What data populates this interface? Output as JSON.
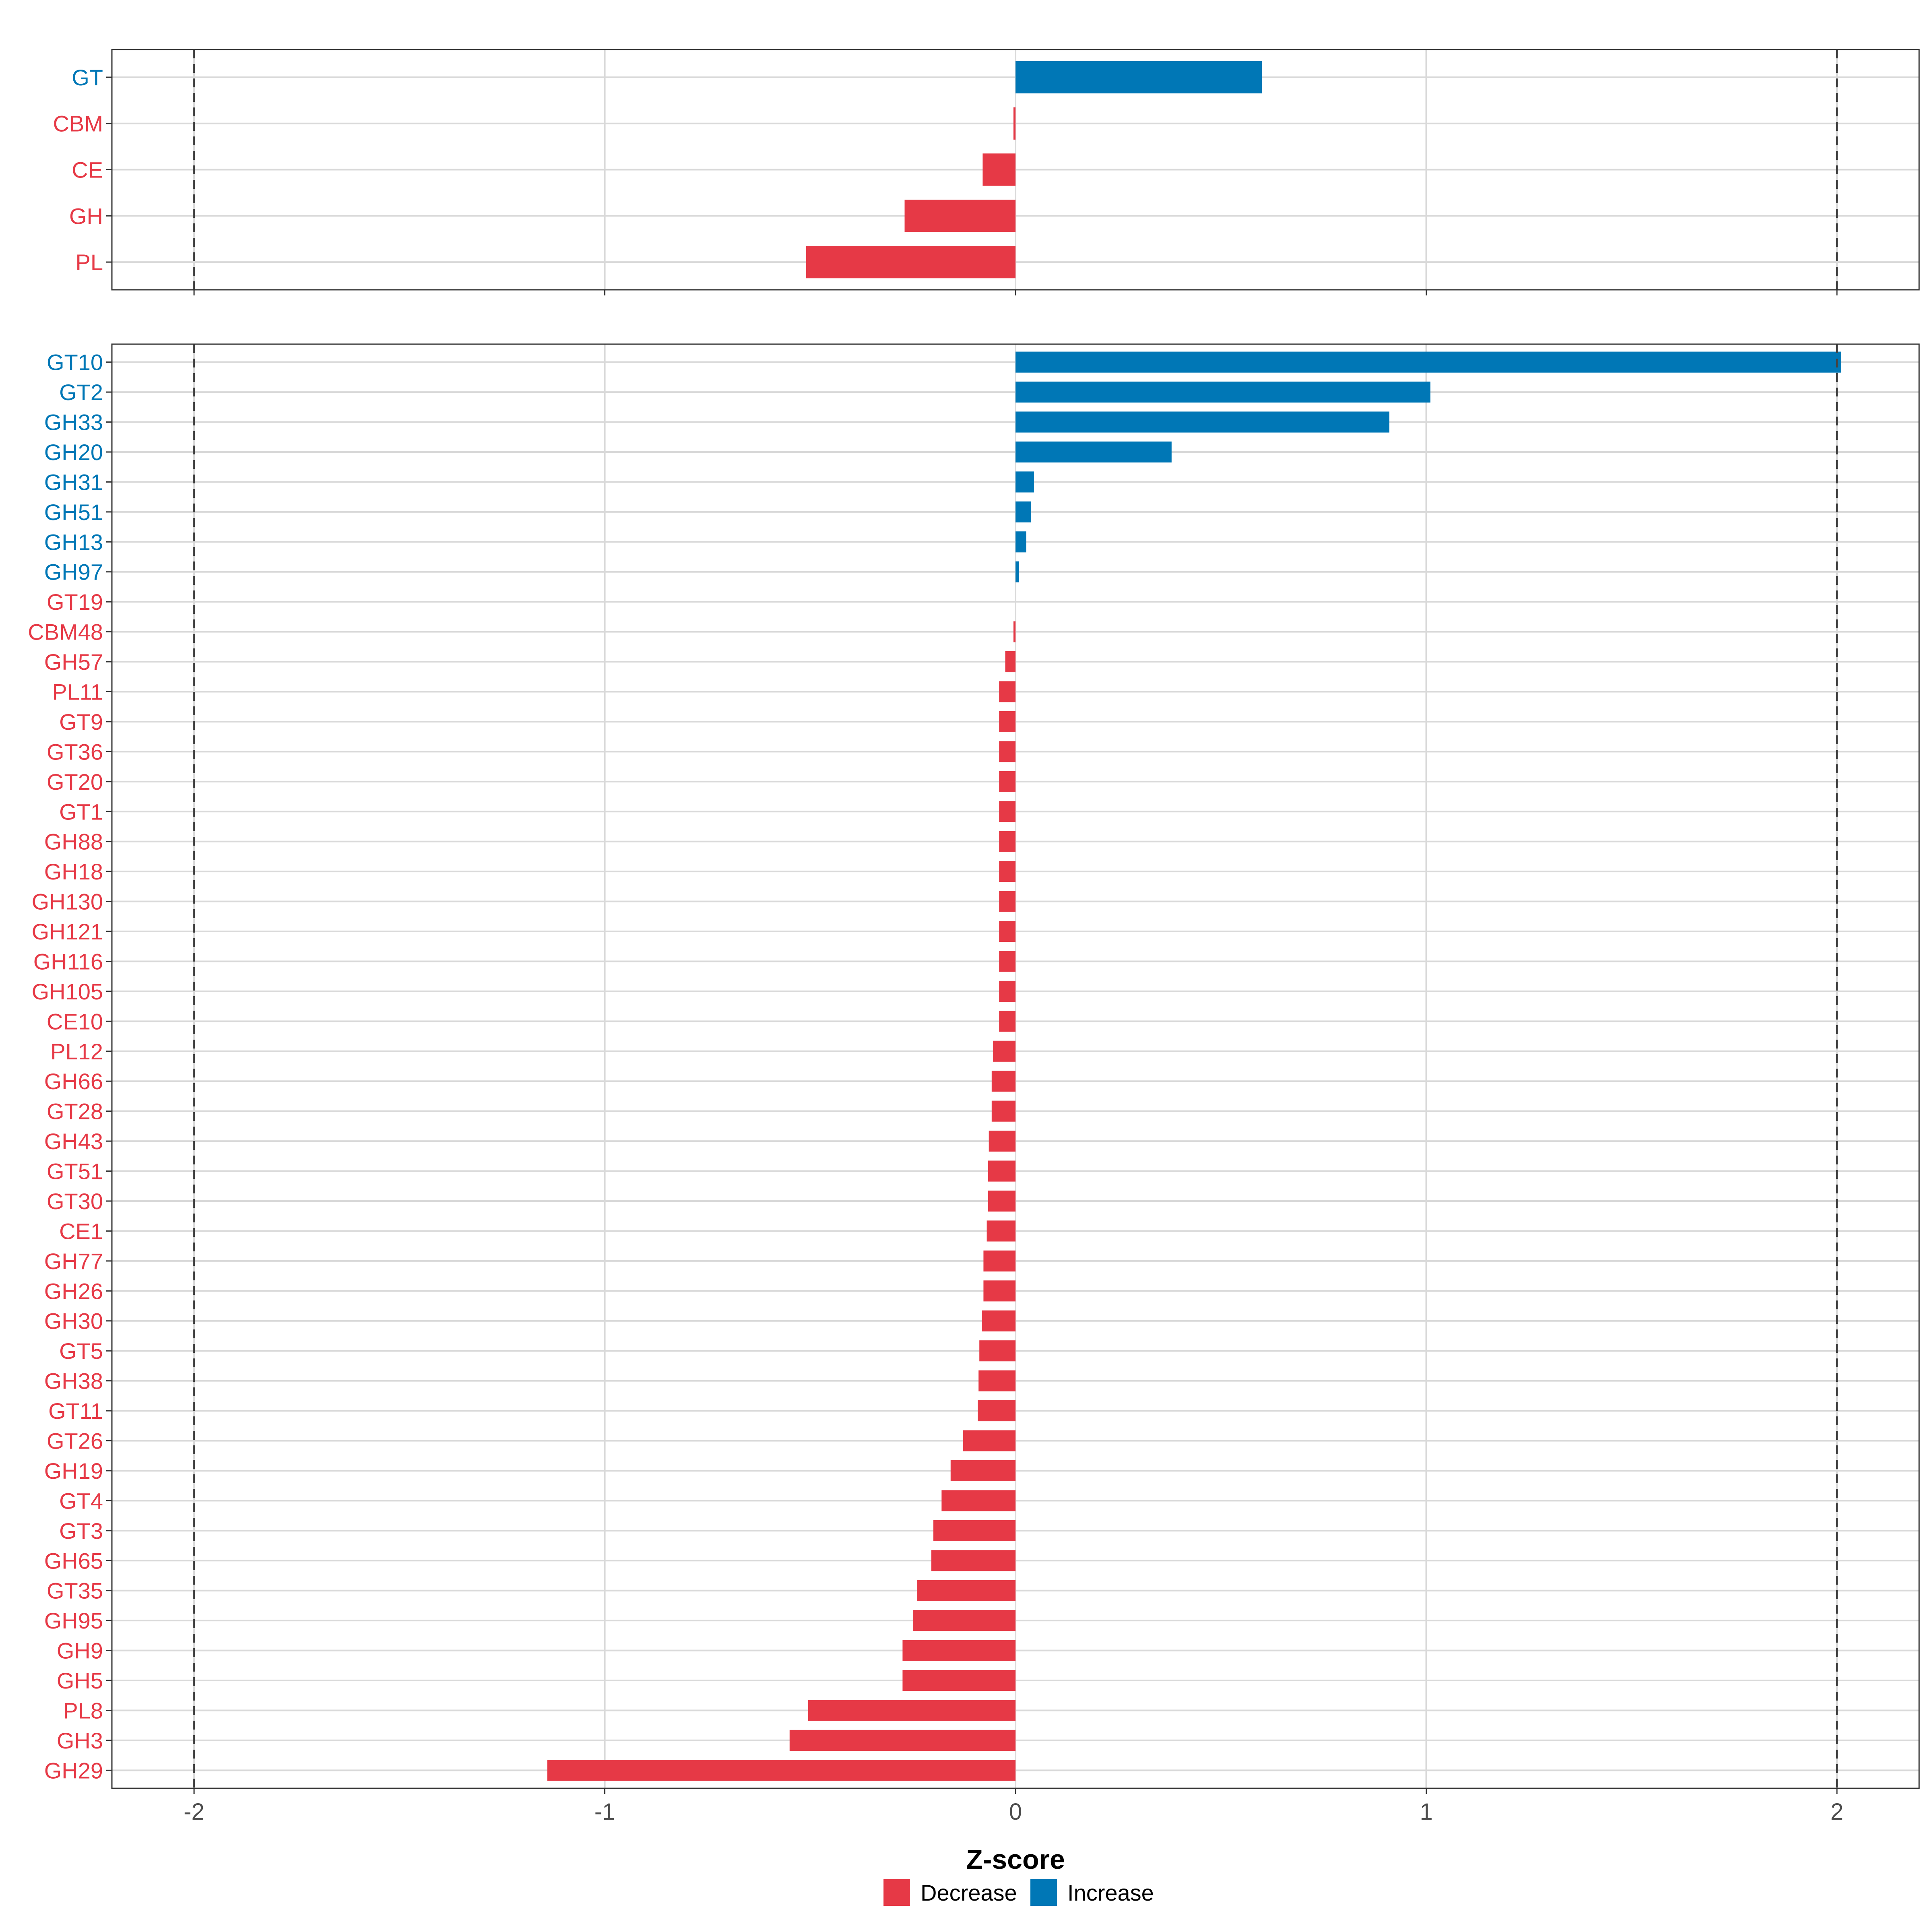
{
  "chart_data": [
    {
      "type": "bar",
      "orientation": "horizontal",
      "panel": "top",
      "categories": [
        "GT",
        "CBM",
        "CE",
        "GH",
        "PL"
      ],
      "values": [
        0.6,
        -0.005,
        -0.08,
        -0.27,
        -0.51
      ],
      "xlim": [
        -2.2,
        2.2
      ],
      "reference_lines": [
        -2,
        2
      ],
      "grid": true
    },
    {
      "type": "bar",
      "orientation": "horizontal",
      "panel": "bottom",
      "categories": [
        "GT10",
        "GT2",
        "GH33",
        "GH20",
        "GH31",
        "GH51",
        "GH13",
        "GH97",
        "GT19",
        "CBM48",
        "GH57",
        "PL11",
        "GT9",
        "GT36",
        "GT20",
        "GT1",
        "GH88",
        "GH18",
        "GH130",
        "GH121",
        "GH116",
        "GH105",
        "CE10",
        "PL12",
        "GH66",
        "GT28",
        "GH43",
        "GT51",
        "GT30",
        "CE1",
        "GH77",
        "GH26",
        "GH30",
        "GT5",
        "GH38",
        "GT11",
        "GT26",
        "GH19",
        "GT4",
        "GT3",
        "GH65",
        "GT35",
        "GH95",
        "GH9",
        "GH5",
        "PL8",
        "GH3",
        "GH29"
      ],
      "values": [
        2.01,
        1.01,
        0.91,
        0.38,
        0.045,
        0.038,
        0.026,
        0.008,
        0.0,
        -0.005,
        -0.025,
        -0.04,
        -0.04,
        -0.04,
        -0.04,
        -0.04,
        -0.04,
        -0.04,
        -0.04,
        -0.04,
        -0.04,
        -0.04,
        -0.04,
        -0.055,
        -0.058,
        -0.058,
        -0.065,
        -0.067,
        -0.067,
        -0.07,
        -0.078,
        -0.078,
        -0.082,
        -0.088,
        -0.09,
        -0.092,
        -0.128,
        -0.158,
        -0.18,
        -0.2,
        -0.205,
        -0.24,
        -0.25,
        -0.275,
        -0.275,
        -0.505,
        -0.55,
        -1.14
      ],
      "xlim": [
        -2.2,
        2.2
      ],
      "xticks": [
        -2,
        -1,
        0,
        1,
        2
      ],
      "xtick_labels": [
        "-2",
        "-1",
        "0",
        "1",
        "2"
      ],
      "xlabel": "Z-score",
      "reference_lines": [
        -2,
        2
      ],
      "grid": true
    }
  ],
  "legend": {
    "items": [
      {
        "label": "Decrease",
        "color": "#e63946"
      },
      {
        "label": "Increase",
        "color": "#0077b6"
      }
    ]
  },
  "colors": {
    "decrease": "#e63946",
    "increase": "#0077b6"
  }
}
